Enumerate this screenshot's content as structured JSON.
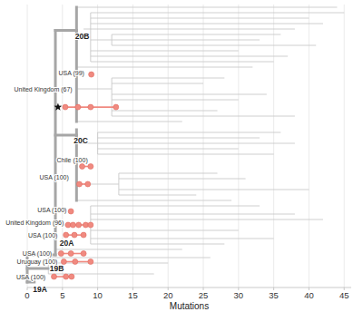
{
  "chart_data": {
    "type": "tree",
    "x_label": "Mutations",
    "xlim": [
      0,
      46
    ],
    "xticks": [
      0,
      5,
      10,
      15,
      20,
      25,
      30,
      35,
      40,
      45
    ],
    "ylim": [
      0,
      104
    ],
    "grid": true,
    "tick_labels": "x",
    "backbone": [
      [
        0,
        102,
        0,
        92
      ],
      [
        0,
        102,
        1,
        102
      ],
      [
        0,
        97,
        3,
        97
      ],
      [
        0,
        92,
        4,
        92
      ],
      [
        4,
        92,
        4,
        9.5
      ],
      [
        4,
        9.5,
        7,
        9.5
      ],
      [
        7,
        1,
        7,
        43
      ],
      [
        4,
        48,
        7,
        48
      ],
      [
        7,
        46,
        7,
        72
      ]
    ],
    "branches": [
      [
        7,
        44,
        1
      ],
      [
        9,
        45,
        3
      ],
      [
        9,
        40,
        5
      ],
      [
        9,
        42,
        7
      ],
      [
        8,
        38,
        9
      ],
      [
        12,
        36,
        11
      ],
      [
        9,
        33,
        13
      ],
      [
        12,
        41,
        15
      ],
      [
        9,
        30,
        17
      ],
      [
        9,
        37,
        19
      ],
      [
        9,
        35,
        21
      ],
      [
        7,
        32,
        23
      ],
      [
        12,
        28,
        27
      ],
      [
        12,
        25,
        29
      ],
      [
        12,
        34,
        33
      ],
      [
        12,
        30,
        35
      ],
      [
        12,
        27,
        39
      ],
      [
        12,
        38,
        41
      ],
      [
        7,
        22,
        43
      ],
      [
        7,
        9,
        12
      ],
      [
        7,
        12,
        31
      ],
      [
        10,
        36,
        47
      ],
      [
        10,
        33,
        49
      ],
      [
        10,
        38,
        51
      ],
      [
        7,
        10,
        51
      ],
      [
        10,
        30,
        53
      ],
      [
        10,
        35,
        55
      ],
      [
        13,
        27,
        62
      ],
      [
        13,
        31,
        64
      ],
      [
        7,
        13,
        66
      ],
      [
        13,
        40,
        68
      ],
      [
        13,
        24,
        70
      ],
      [
        7,
        29,
        72
      ],
      [
        9,
        33,
        74
      ],
      [
        9,
        38,
        77
      ],
      [
        9,
        42,
        79
      ],
      [
        4,
        9,
        81
      ],
      [
        9,
        30,
        83
      ],
      [
        9,
        35,
        86
      ],
      [
        9,
        28,
        88
      ],
      [
        4,
        22,
        90
      ],
      [
        3,
        26,
        93
      ],
      [
        3,
        20,
        95
      ],
      [
        3,
        18,
        99
      ]
    ],
    "links": [
      [
        9,
        3,
        21
      ],
      [
        12,
        27,
        41
      ],
      [
        12,
        11,
        15
      ],
      [
        10,
        47,
        55
      ],
      [
        13,
        62,
        70
      ],
      [
        9,
        74,
        88
      ],
      [
        3,
        93,
        99
      ]
    ],
    "clades": [
      {
        "label": "19A",
        "x": 0.8,
        "row": 104.6
      },
      {
        "label": "19B",
        "x": 3.2,
        "row": 97
      },
      {
        "label": "20A",
        "x": 4.6,
        "row": 87.5
      },
      {
        "label": "20B",
        "x": 6.8,
        "row": 11.5
      },
      {
        "label": "20C",
        "x": 6.6,
        "row": 50
      }
    ],
    "highlights": {
      "color": "#f08a80",
      "groups": [
        {
          "label": "USA (99)",
          "label_x": 8.1,
          "label_row": 25,
          "row": 25.7,
          "points": [
            9.1
          ]
        },
        {
          "label": "United Kingdom (67)",
          "label_x": 6.4,
          "label_row": 31,
          "row": 37.7,
          "points": [
            5.4,
            7.2,
            9.0,
            12.6
          ],
          "marker": "star"
        },
        {
          "label": "Chile (100)",
          "label_x": 8.6,
          "label_row": 57,
          "row": 59.5,
          "points": [
            7.8,
            9.0
          ]
        },
        {
          "label": "USA (100)",
          "label_x": 5.9,
          "label_row": 63.5,
          "row": 66,
          "points": [
            7.4,
            8.6
          ]
        },
        {
          "label": "USA (100)",
          "label_x": 5.6,
          "label_row": 75.5,
          "row": 76,
          "points": [
            6.2
          ]
        },
        {
          "label": "United Kingdom (96)",
          "label_x": 5.2,
          "label_row": 80.3,
          "row": 81,
          "points": [
            5.8,
            6.5,
            7.3,
            8.3,
            9.0
          ]
        },
        {
          "label": "USA (100)",
          "label_x": 4.3,
          "label_row": 84.7,
          "row": 84.7,
          "points": [
            5.5,
            6.7,
            8.0
          ]
        },
        {
          "label": "USA (100)",
          "label_x": 3.5,
          "label_row": 91.5,
          "row": 91.5,
          "points": [
            4.8,
            6.2,
            8.0
          ]
        },
        {
          "label": "Uruguay (100)",
          "label_x": 4.3,
          "label_row": 94.5,
          "row": 94.5,
          "points": [
            5.2,
            6.8,
            9.0
          ]
        },
        {
          "label": "USA (100)",
          "label_x": 2.6,
          "label_row": 100,
          "row": 100,
          "points": [
            3.8,
            5.5,
            6.3
          ]
        }
      ]
    }
  }
}
